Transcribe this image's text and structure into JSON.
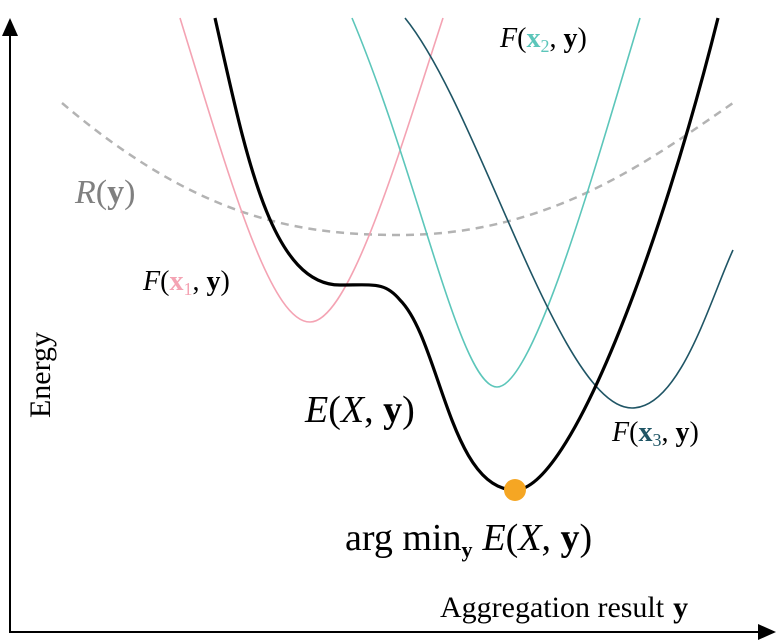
{
  "axes": {
    "y_label": "Energy",
    "x_label": "Aggregation result",
    "x_symbol": "y"
  },
  "labels": {
    "regularizer": [
      "R",
      "(",
      "y",
      ")"
    ],
    "f1": [
      "F",
      "(",
      "x",
      "1",
      ", ",
      "y",
      ")"
    ],
    "f2": [
      "F",
      "(",
      "x",
      "2",
      ", ",
      "y",
      ")"
    ],
    "f3": [
      "F",
      "(",
      "x",
      "3",
      ", ",
      "y",
      ")"
    ],
    "energy": [
      "E",
      "(",
      "X",
      ", ",
      "y",
      ")"
    ],
    "argmin": [
      "arg min",
      "y",
      "E",
      "(",
      "X",
      ", ",
      "y",
      ")"
    ]
  }
}
